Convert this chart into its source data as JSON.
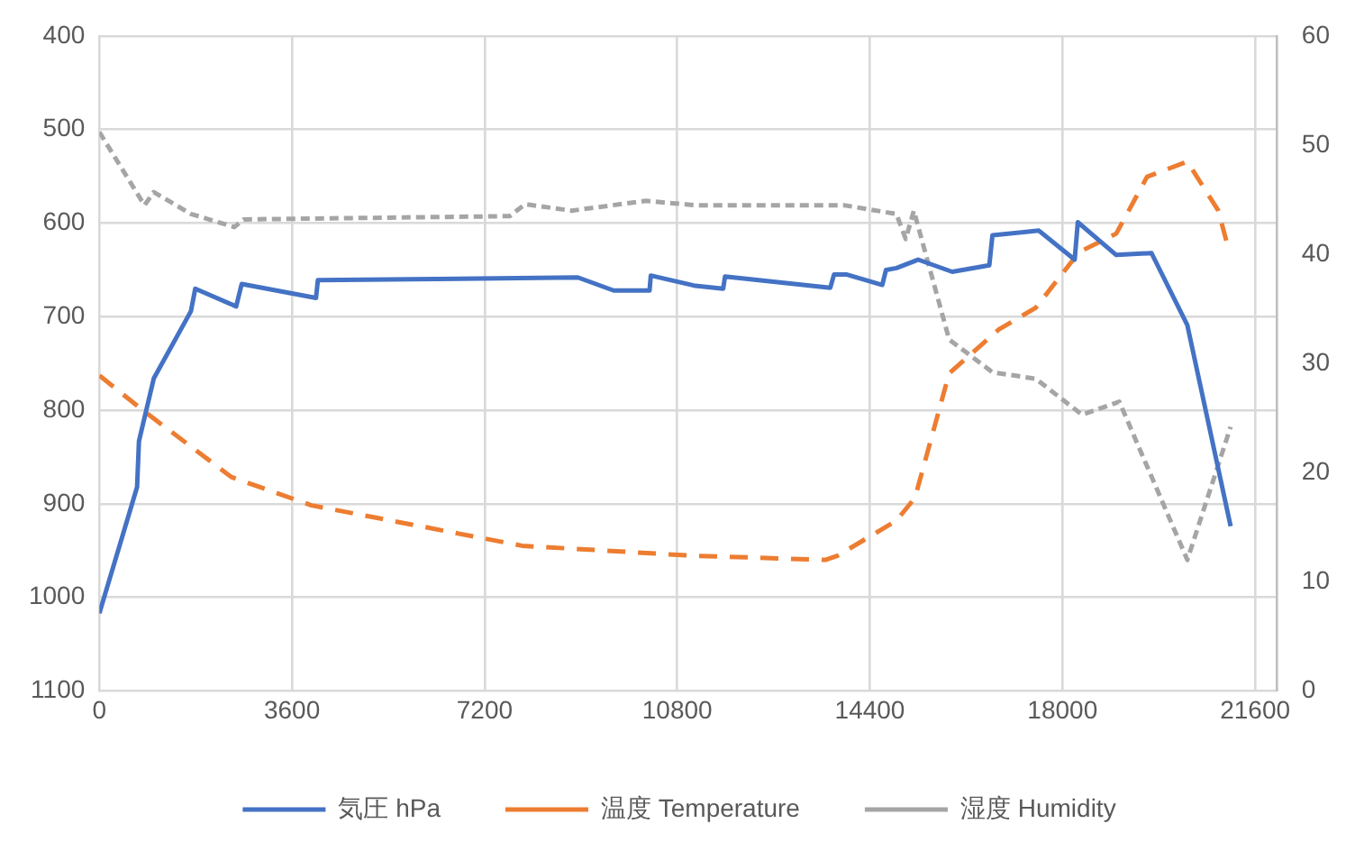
{
  "chart_data": {
    "type": "line",
    "xlim": [
      0,
      22000
    ],
    "xticks": [
      0,
      3600,
      7200,
      10800,
      14400,
      18000,
      21600
    ],
    "ylim": [
      1100,
      400
    ],
    "yticks": [
      400,
      500,
      600,
      700,
      800,
      900,
      1000,
      1100
    ],
    "y2lim": [
      0,
      60
    ],
    "y2ticks": [
      0,
      10,
      20,
      30,
      40,
      50,
      60
    ],
    "grid": true,
    "legend": "bottom",
    "series": [
      {
        "name": "気圧 hPa",
        "color": "#4472c4",
        "line_style": "solid",
        "x": [
          0,
          705,
          740,
          1017,
          1712,
          1792,
          2557,
          2660,
          4049,
          4084,
          8942,
          9612,
          10283,
          10306,
          11139,
          11659,
          11694,
          13661,
          13730,
          13973,
          14632,
          14702,
          14896,
          15303,
          15939,
          16633,
          16691,
          17558,
          18228,
          18287,
          19005,
          19664,
          20334,
          21143
        ],
        "values": [
          1017,
          882,
          833,
          766,
          694,
          670,
          689,
          665,
          680,
          661,
          658,
          672,
          672,
          656,
          667,
          670,
          657,
          669,
          655,
          655,
          666,
          650,
          648,
          639,
          652,
          645,
          613,
          608,
          639,
          599,
          634,
          632,
          709,
          924
        ]
      },
      {
        "name": "温度 Temperature",
        "color": "#ed7d31",
        "line_style": "dashed",
        "axis": "y2",
        "x": [
          0,
          843,
          2464,
          3966,
          7901,
          11024,
          13568,
          13800,
          14896,
          15244,
          15882,
          16805,
          17500,
          18310,
          19005,
          19581,
          20334,
          20913,
          21087
        ],
        "values": [
          28.9,
          25.6,
          19.6,
          17.0,
          13.3,
          12.4,
          12.0,
          12.4,
          15.6,
          17.7,
          29.1,
          33.1,
          35.1,
          40.2,
          41.9,
          47.1,
          48.5,
          44.0,
          40.8
        ]
      },
      {
        "name": "湿度 Humidity",
        "color": "#a5a5a5",
        "line_style": "dotted",
        "axis": "y2",
        "x": [
          0,
          843,
          1017,
          1712,
          2522,
          2696,
          7669,
          7957,
          8825,
          10212,
          11139,
          13915,
          14896,
          15071,
          15222,
          15882,
          16691,
          17500,
          18368,
          19062,
          20334,
          21143
        ],
        "values": [
          51.2,
          44.5,
          45.7,
          43.7,
          42.5,
          43.2,
          43.5,
          44.6,
          44.0,
          44.9,
          44.5,
          44.5,
          43.7,
          41.4,
          44.0,
          32.2,
          29.2,
          28.6,
          25.3,
          26.5,
          12.0,
          24.2
        ]
      }
    ]
  }
}
